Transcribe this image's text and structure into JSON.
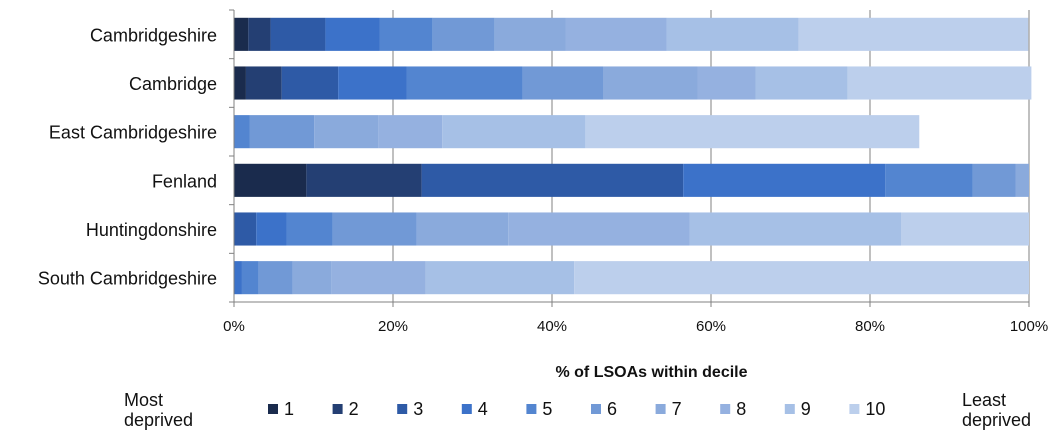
{
  "chart_data": {
    "type": "bar",
    "orientation": "horizontal",
    "stacked": true,
    "categories": [
      "Cambridgeshire",
      "Cambridge",
      "East Cambridgeshire",
      "Fenland",
      "Huntingdonshire",
      "South Cambridgeshire"
    ],
    "series": [
      {
        "name": "1",
        "color": "#1a2b4d",
        "values": [
          1.8,
          1.5,
          0.0,
          9.1,
          0.0,
          0.0
        ]
      },
      {
        "name": "2",
        "color": "#243f73",
        "values": [
          2.8,
          4.5,
          0.0,
          14.5,
          0.0,
          0.0
        ]
      },
      {
        "name": "3",
        "color": "#2e5aa6",
        "values": [
          6.9,
          7.1,
          0.0,
          32.9,
          2.8,
          0.0
        ]
      },
      {
        "name": "4",
        "color": "#3c72c9",
        "values": [
          6.8,
          8.6,
          0.0,
          25.4,
          3.8,
          1.0
        ]
      },
      {
        "name": "5",
        "color": "#5385d0",
        "values": [
          6.7,
          14.6,
          2.0,
          11.0,
          5.8,
          2.1
        ]
      },
      {
        "name": "6",
        "color": "#7199d6",
        "values": [
          7.8,
          10.2,
          8.1,
          5.4,
          10.6,
          4.3
        ]
      },
      {
        "name": "7",
        "color": "#8aaadc",
        "values": [
          8.9,
          11.8,
          8.1,
          1.7,
          11.5,
          4.9
        ]
      },
      {
        "name": "8",
        "color": "#95b1e0",
        "values": [
          12.7,
          7.3,
          8.0,
          0.0,
          22.8,
          11.8
        ]
      },
      {
        "name": "9",
        "color": "#a6c0e6",
        "values": [
          16.6,
          11.6,
          18.0,
          0.0,
          26.6,
          18.7
        ]
      },
      {
        "name": "10",
        "color": "#bccfec",
        "values": [
          28.9,
          23.1,
          42.0,
          0.0,
          16.1,
          57.2
        ]
      }
    ],
    "xlim": [
      0,
      100
    ],
    "xticks": [
      "0%",
      "20%",
      "40%",
      "60%",
      "80%",
      "100%"
    ],
    "xlabel": "% of LSOAs within decile",
    "grid": "vertical",
    "legend": {
      "placement": "bottom",
      "left_label_lines": [
        "Most",
        "deprived"
      ],
      "right_label_lines": [
        "Least",
        "deprived"
      ]
    }
  }
}
